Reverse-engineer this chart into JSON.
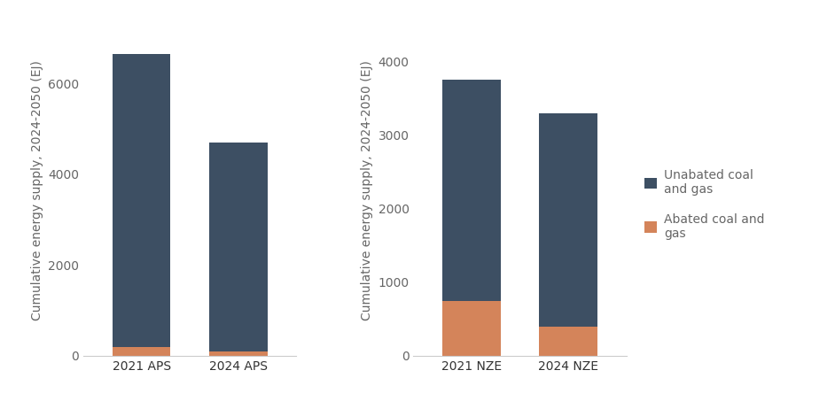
{
  "aps": {
    "categories": [
      "2021 APS",
      "2024 APS"
    ],
    "abated": [
      200,
      100
    ],
    "unabated": [
      6450,
      4600
    ],
    "ylabel": "Cumulative energy supply, 2024-2050 (EJ)",
    "ylim": [
      0,
      7300
    ],
    "yticks": [
      0,
      2000,
      4000,
      6000
    ]
  },
  "nze": {
    "categories": [
      "2021 NZE",
      "2024 NZE"
    ],
    "abated": [
      750,
      400
    ],
    "unabated": [
      3000,
      2900
    ],
    "ylabel": "Cumulative energy supply, 2024-2050 (EJ)",
    "ylim": [
      0,
      4500
    ],
    "yticks": [
      0,
      1000,
      2000,
      3000,
      4000
    ]
  },
  "colors": {
    "unabated": "#3d4f63",
    "abated": "#d4845a"
  },
  "legend": {
    "unabated_label": "Unabated coal\nand gas",
    "abated_label": "Abated coal and\ngas"
  },
  "background_color": "#ffffff",
  "bar_width": 0.6,
  "label_fontsize": 10,
  "tick_fontsize": 10,
  "ylabel_fontsize": 10,
  "ylabel_color": "#666666",
  "tick_color": "#666666",
  "xtick_color": "#333333"
}
